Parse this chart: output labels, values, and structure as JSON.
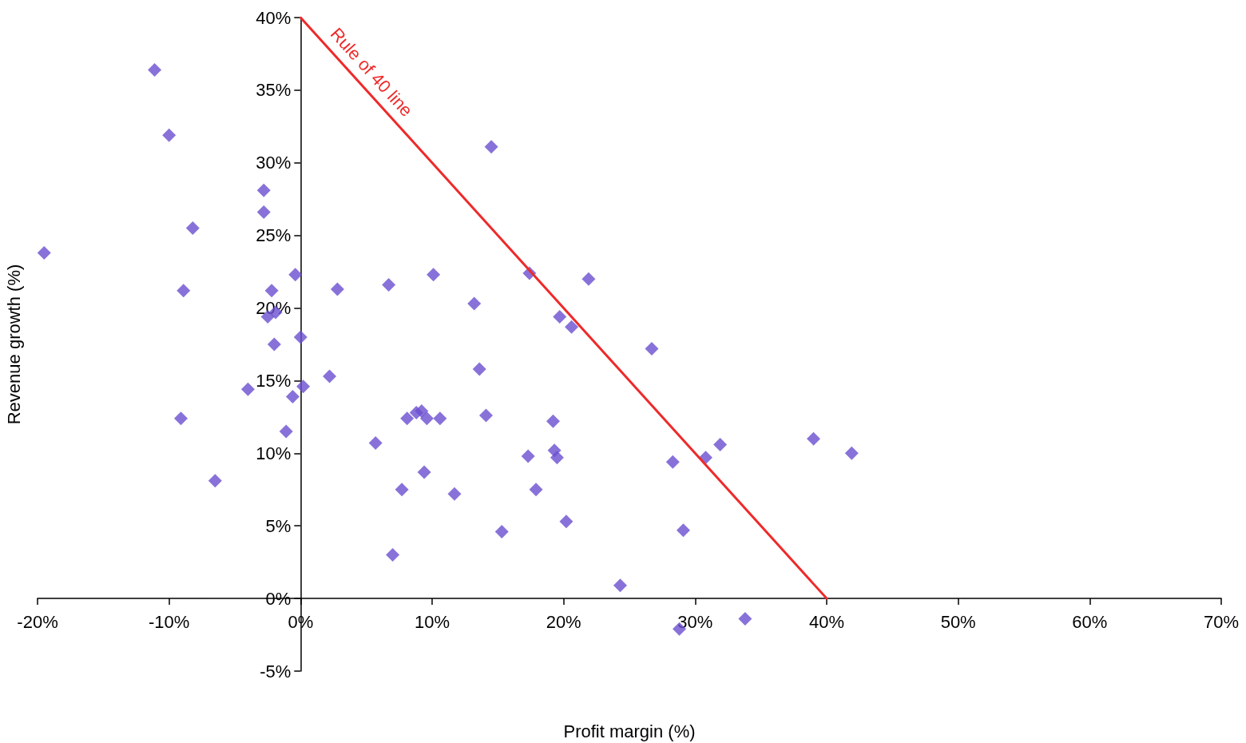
{
  "chart_data": {
    "type": "scatter",
    "xlabel": "Profit margin (%)",
    "ylabel": "Revenue growth (%)",
    "marker": "diamond",
    "xlim": [
      -20,
      70
    ],
    "xticks": [
      {
        "value": -20,
        "label": "-20%"
      },
      {
        "value": -10,
        "label": "-10%"
      },
      {
        "value": 0,
        "label": "0%"
      },
      {
        "value": 10,
        "label": "10%"
      },
      {
        "value": 20,
        "label": "20%"
      },
      {
        "value": 30,
        "label": "30%"
      },
      {
        "value": 40,
        "label": "40%"
      },
      {
        "value": 50,
        "label": "50%"
      },
      {
        "value": 60,
        "label": "60%"
      },
      {
        "value": 70,
        "label": "70%"
      }
    ],
    "ylim": [
      -5,
      40
    ],
    "yticks": [
      {
        "value": -5,
        "label": "-5%"
      },
      {
        "value": 0,
        "label": "0%"
      },
      {
        "value": 5,
        "label": "5%"
      },
      {
        "value": 10,
        "label": "10%"
      },
      {
        "value": 15,
        "label": "15%"
      },
      {
        "value": 20,
        "label": "20%"
      },
      {
        "value": 25,
        "label": "25%"
      },
      {
        "value": 30,
        "label": "30%"
      },
      {
        "value": 35,
        "label": "35%"
      },
      {
        "value": 40,
        "label": "40%"
      }
    ],
    "series": [
      {
        "type": "scatter",
        "color": "#6a4fcf",
        "x": [
          -11.1,
          -10.0,
          -19.5,
          -8.2,
          -2.8,
          -2.8,
          -8.9,
          -0.4,
          -2.2,
          -2.5,
          -1.9,
          -2.0,
          0.0,
          2.8,
          2.2,
          -4.0,
          -0.6,
          0.2,
          -1.1,
          -9.1,
          -6.5,
          6.7,
          10.1,
          13.2,
          14.5,
          13.6,
          5.7,
          8.1,
          8.8,
          9.2,
          9.6,
          10.6,
          14.1,
          9.4,
          7.7,
          11.7,
          7.0,
          15.3,
          17.4,
          21.9,
          19.7,
          20.6,
          19.2,
          17.3,
          19.3,
          19.5,
          17.9,
          20.2,
          26.7,
          28.3,
          30.8,
          31.9,
          29.1,
          24.3,
          39.0,
          41.9,
          33.8,
          28.8
        ],
        "values": [
          36.4,
          31.9,
          23.8,
          25.5,
          28.1,
          26.6,
          21.2,
          22.3,
          21.2,
          19.4,
          19.7,
          17.5,
          18.0,
          21.3,
          15.3,
          14.4,
          13.9,
          14.6,
          11.5,
          12.4,
          8.1,
          21.6,
          22.3,
          20.3,
          31.1,
          15.8,
          10.7,
          12.4,
          12.8,
          12.9,
          12.4,
          12.4,
          12.6,
          8.7,
          7.5,
          7.2,
          3.0,
          4.6,
          22.4,
          22.0,
          19.4,
          18.7,
          12.2,
          9.8,
          10.2,
          9.7,
          7.5,
          5.3,
          17.2,
          9.4,
          9.7,
          10.6,
          4.7,
          0.9,
          11.0,
          10.0,
          -1.4,
          -2.1
        ]
      },
      {
        "type": "line",
        "name": "Rule of 40 line",
        "color": "#ee2a2a",
        "marker": "none",
        "line_style": "solid",
        "x": [
          0,
          40
        ],
        "values": [
          40,
          0
        ]
      }
    ]
  }
}
